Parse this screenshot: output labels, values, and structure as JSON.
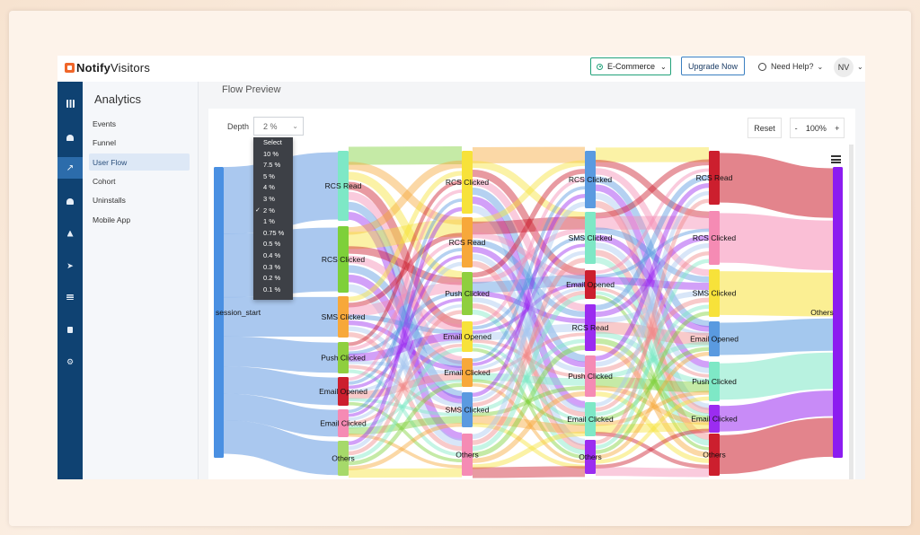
{
  "brand": {
    "name_bold": "Notify",
    "name_light": "Visitors"
  },
  "topbar": {
    "project": "E-Commerce",
    "upgrade_label": "Upgrade Now",
    "help_label": "Need Help?",
    "avatar_initials": "NV"
  },
  "sidebar": {
    "title": "Analytics",
    "items": [
      {
        "label": "Events"
      },
      {
        "label": "Funnel"
      },
      {
        "label": "User Flow"
      },
      {
        "label": "Cohort"
      },
      {
        "label": "Uninstalls"
      },
      {
        "label": "Mobile App"
      }
    ],
    "active_index": 2
  },
  "rail_icons": [
    "grid-icon",
    "dashboard-icon",
    "chart-icon",
    "users-icon",
    "hierarchy-icon",
    "send-icon",
    "list-icon",
    "image-icon",
    "settings-icon"
  ],
  "content": {
    "title": "Flow Preview",
    "depth_label": "Depth",
    "depth_value": "2 %",
    "reset_label": "Reset",
    "zoom_minus": "-",
    "zoom_value": "100%",
    "zoom_plus": "+"
  },
  "dropdown": {
    "options": [
      "Select",
      "10 %",
      "7.5 %",
      "5 %",
      "4 %",
      "3 %",
      "2 %",
      "1 %",
      "0.75 %",
      "0.5 %",
      "0.4 %",
      "0.3 %",
      "0.2 %",
      "0.1 %"
    ],
    "selected": "2 %"
  },
  "colors": {
    "rcs_read": "#7ee8c6",
    "rcs_clicked": "#7ed03a",
    "sms_clicked": "#f7a83a",
    "push_clicked": "#8fcf3e",
    "email_opened": "#cc1f2e",
    "email_clicked": "#f58bb4",
    "others": "#a6d96a",
    "session_start": "#4a90e2",
    "sms_blue": "#5a9ae0",
    "push_violet": "#9b2cf0",
    "final_others": "#8c1cf0"
  },
  "sankey": {
    "levels": [
      {
        "nodes": [
          {
            "label": "session_start"
          }
        ]
      },
      {
        "nodes": [
          {
            "label": "RCS Read"
          },
          {
            "label": "RCS Clicked"
          },
          {
            "label": "SMS Clicked"
          },
          {
            "label": "Push Clicked"
          },
          {
            "label": "Email Opened"
          },
          {
            "label": "Email Clicked"
          },
          {
            "label": "Others"
          }
        ]
      },
      {
        "nodes": [
          {
            "label": "RCS Clicked"
          },
          {
            "label": "RCS Read"
          },
          {
            "label": "Push Clicked"
          },
          {
            "label": "Email Opened"
          },
          {
            "label": "Email Clicked"
          },
          {
            "label": "SMS Clicked"
          },
          {
            "label": "Others"
          }
        ]
      },
      {
        "nodes": [
          {
            "label": "RCS Clicked"
          },
          {
            "label": "SMS Clicked"
          },
          {
            "label": "Email Opened"
          },
          {
            "label": "RCS Read"
          },
          {
            "label": "Push Clicked"
          },
          {
            "label": "Email Clicked"
          },
          {
            "label": "Others"
          }
        ]
      },
      {
        "nodes": [
          {
            "label": "RCS Read"
          },
          {
            "label": "RCS Clicked"
          },
          {
            "label": "SMS Clicked"
          },
          {
            "label": "Email Opened"
          },
          {
            "label": "Push Clicked"
          },
          {
            "label": "Email Clicked"
          },
          {
            "label": "Others"
          }
        ]
      },
      {
        "nodes": [
          {
            "label": "Others"
          }
        ]
      }
    ]
  }
}
